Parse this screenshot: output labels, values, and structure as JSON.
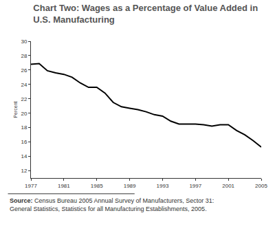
{
  "chart_data": {
    "type": "line",
    "title": "Chart Two: Wages as a Percentage of Value Added in U.S. Manufacturing",
    "y_label": "Percent",
    "source": "Source: Census Bureau 2005 Annual Survey of Manufacturers, Sector 31: General Statistics, Statistics for all Manufacturing Establishments, 2005.",
    "x": [
      1977,
      1978,
      1979,
      1980,
      1981,
      1982,
      1983,
      1984,
      1985,
      1986,
      1987,
      1988,
      1989,
      1990,
      1991,
      1992,
      1993,
      1994,
      1995,
      1996,
      1997,
      1998,
      1999,
      2000,
      2001,
      2002,
      2003,
      2004,
      2005
    ],
    "values": [
      26.8,
      26.9,
      25.9,
      25.6,
      25.4,
      25.0,
      24.2,
      23.6,
      23.6,
      22.8,
      21.5,
      20.9,
      20.7,
      20.5,
      20.2,
      19.8,
      19.6,
      18.9,
      18.5,
      18.5,
      18.5,
      18.4,
      18.2,
      18.4,
      18.4,
      17.6,
      17.0,
      16.2,
      15.3
    ],
    "color": "#000000",
    "xlim": [
      1977,
      2005
    ],
    "xticks": [
      1977,
      1981,
      1985,
      1989,
      1993,
      1997,
      2001,
      2005
    ],
    "ylim": [
      11,
      30
    ],
    "yticks": [
      12,
      14,
      16,
      18,
      20,
      22,
      24,
      26,
      28,
      30
    ],
    "grid": false
  }
}
